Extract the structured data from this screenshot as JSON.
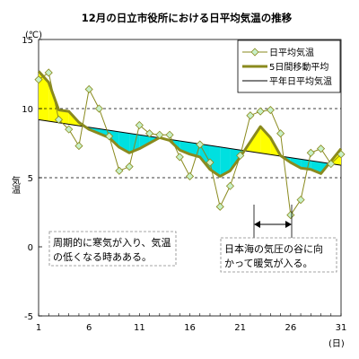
{
  "chart_data": {
    "type": "line",
    "title": "12月の日立市役所における日平均気温の推移",
    "y_unit": "(℃)",
    "ylabel": "気温",
    "x_unit": "(日)",
    "xlim": [
      1,
      31
    ],
    "ylim": [
      -5,
      15
    ],
    "y_ticks": [
      15,
      10,
      5,
      0,
      -5
    ],
    "x_ticks": [
      1,
      6,
      11,
      16,
      21,
      26,
      31
    ],
    "grid": "dashed at y=5 and y=10",
    "legend_position": "top-right",
    "colors": {
      "daily": "#8a8a1e",
      "moving_avg": "#8a8a1e",
      "normal": "#000000",
      "above_fill": "#ffff00",
      "below_fill": "#00e0e0",
      "marker_fill": "#c8f0c8"
    },
    "series": [
      {
        "name": "日平均気温",
        "x": [
          1,
          2,
          3,
          4,
          5,
          6,
          7,
          8,
          9,
          10,
          11,
          12,
          13,
          14,
          15,
          16,
          17,
          18,
          19,
          20,
          21,
          22,
          23,
          24,
          25,
          26,
          27,
          28,
          29,
          30,
          31
        ],
        "values": [
          12.1,
          12.6,
          9.2,
          8.5,
          7.3,
          11.4,
          10.0,
          8.0,
          5.5,
          5.8,
          8.8,
          8.2,
          8.1,
          8.1,
          6.5,
          5.1,
          7.4,
          6.1,
          2.9,
          4.4,
          6.6,
          9.5,
          9.8,
          9.9,
          8.2,
          2.3,
          3.4,
          6.8,
          7.1,
          6.0,
          6.7
        ]
      },
      {
        "name": "5日間移動平均",
        "x": [
          1,
          2,
          3,
          4,
          5,
          6,
          7,
          8,
          9,
          10,
          11,
          12,
          13,
          14,
          15,
          16,
          17,
          18,
          19,
          20,
          21,
          22,
          23,
          24,
          25,
          26,
          27,
          28,
          29,
          30,
          31
        ],
        "values": [
          12.7,
          11.9,
          9.9,
          9.8,
          9.0,
          8.5,
          8.2,
          7.9,
          7.2,
          6.8,
          7.1,
          7.5,
          7.9,
          7.7,
          7.0,
          6.7,
          6.5,
          5.6,
          5.1,
          5.5,
          6.5,
          7.6,
          8.7,
          7.9,
          6.6,
          6.1,
          5.7,
          5.6,
          5.3,
          6.2,
          7.1
        ]
      },
      {
        "name": "平年日平均気温",
        "x": [
          1,
          31
        ],
        "values": [
          9.2,
          5.9
        ]
      }
    ],
    "annotations": [
      {
        "lines": [
          "周期的に寒気が入り、気温",
          "の低くなる時あある。"
        ]
      },
      {
        "lines": [
          "日本海の気圧の谷に向",
          "かって暖気が入る。"
        ]
      }
    ]
  }
}
